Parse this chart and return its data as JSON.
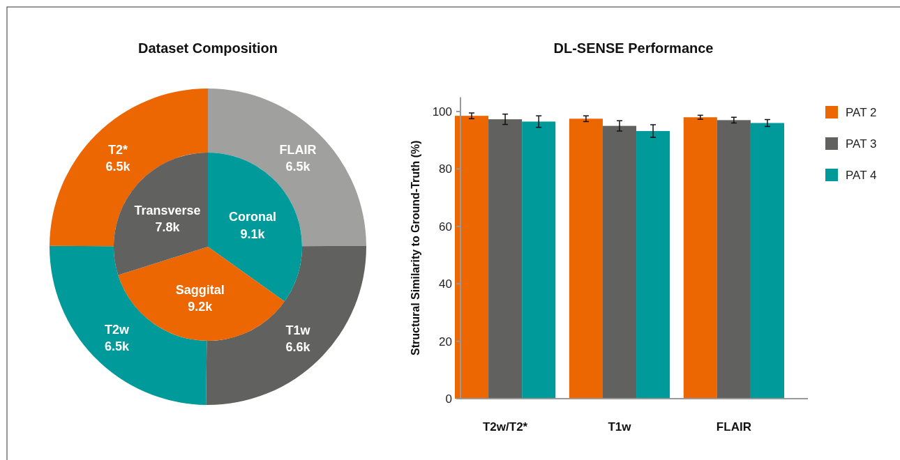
{
  "chart_data": [
    {
      "type": "donut",
      "title": "Dataset Composition",
      "categories": [
        "FLAIR",
        "T1w",
        "T2w",
        "T2*"
      ],
      "values": [
        6.5,
        6.6,
        6.5,
        6.5
      ],
      "value_labels": [
        "6.5k",
        "6.6k",
        "6.5k",
        "6.5k"
      ],
      "colors": [
        "#a0a19f",
        "#616260",
        "#009a9b",
        "#ec6602"
      ]
    },
    {
      "type": "pie",
      "categories": [
        "Coronal",
        "Saggital",
        "Transverse"
      ],
      "values": [
        9.1,
        9.2,
        7.8
      ],
      "value_labels": [
        "9.1k",
        "9.2k",
        "7.8k"
      ],
      "colors": [
        "#009a9b",
        "#ec6602",
        "#616260"
      ]
    },
    {
      "type": "bar",
      "title": "DL-SENSE Performance",
      "ylabel": "Structural Similarity to Ground-Truth (%)",
      "categories": [
        "T2w/T2*",
        "T1w",
        "FLAIR"
      ],
      "ylim": [
        0,
        105
      ],
      "yticks": [
        0,
        20,
        40,
        60,
        80,
        100
      ],
      "grid": false,
      "legend": "top right",
      "series": [
        {
          "name": "PAT 2",
          "color": "#ec6602",
          "values": [
            98.5,
            97.5,
            98
          ],
          "errors": [
            1,
            1,
            0.7
          ]
        },
        {
          "name": "PAT 3",
          "color": "#616260",
          "values": [
            97.3,
            95,
            97
          ],
          "errors": [
            1.8,
            1.8,
            1
          ]
        },
        {
          "name": "PAT 4",
          "color": "#009a9b",
          "values": [
            96.5,
            93.2,
            96
          ],
          "errors": [
            2,
            2.2,
            1.2
          ]
        }
      ]
    }
  ]
}
